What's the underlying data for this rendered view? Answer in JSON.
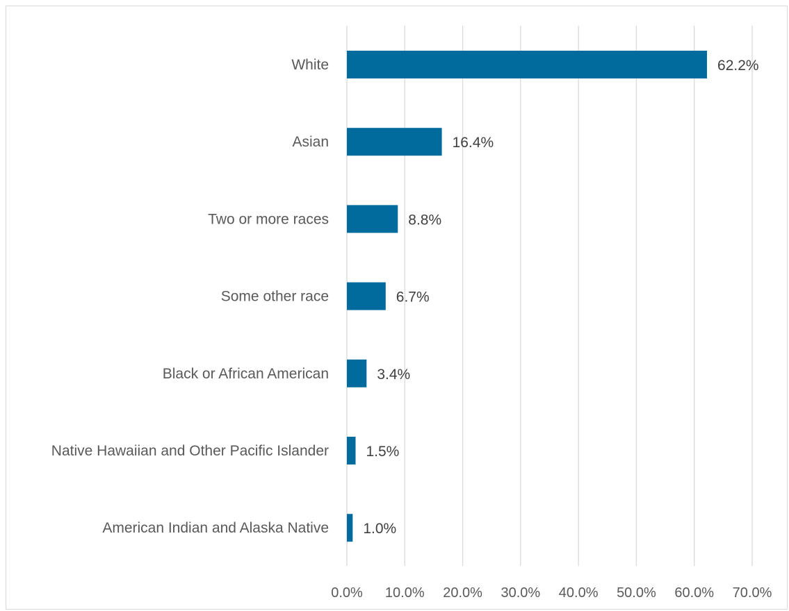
{
  "chart_data": {
    "type": "bar",
    "orientation": "horizontal",
    "title": "",
    "xlabel": "",
    "ylabel": "",
    "categories": [
      "White",
      "Asian",
      "Two or more races",
      "Some other race",
      "Black or African American",
      "Native Hawaiian and Other Pacific Islander",
      "American Indian and Alaska Native"
    ],
    "values": [
      62.2,
      16.4,
      8.8,
      6.7,
      3.4,
      1.5,
      1.0
    ],
    "data_labels": [
      "62.2%",
      "16.4%",
      "8.8%",
      "6.7%",
      "3.4%",
      "1.5%",
      "1.0%"
    ],
    "xlim": [
      0,
      70
    ],
    "x_ticks": [
      0,
      10,
      20,
      30,
      40,
      50,
      60,
      70
    ],
    "x_tick_labels": [
      "0.0%",
      "10.0%",
      "20.0%",
      "30.0%",
      "40.0%",
      "50.0%",
      "60.0%",
      "70.0%"
    ],
    "grid": "vertical",
    "legend": "none",
    "bar_color": "#006b9c",
    "grid_color": "#d9d9d9"
  }
}
